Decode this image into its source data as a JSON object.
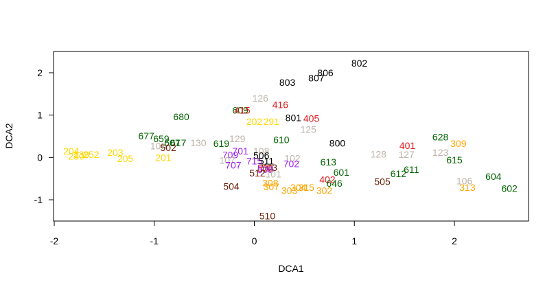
{
  "chart_data": {
    "type": "scatter",
    "title": "",
    "xlabel": "DCA1",
    "ylabel": "DCA2",
    "xlim": [
      -2,
      2.7
    ],
    "ylim": [
      -1.5,
      2.45
    ],
    "xticks": [
      -2,
      -1,
      0,
      1,
      2
    ],
    "yticks": [
      -1,
      0,
      1,
      2
    ],
    "grid": false,
    "colors": {
      "black": "#000000",
      "red": "#e31a1c",
      "gold": "#ffd700",
      "orange": "#ffa500",
      "gray": "#bdb3a8",
      "darkgreen": "#006400",
      "brown": "#6b1a00",
      "purple": "#a020f0"
    },
    "points": [
      {
        "label": "802",
        "x": 1.05,
        "y": 2.23,
        "color": "black"
      },
      {
        "label": "806",
        "x": 0.71,
        "y": 2.0,
        "color": "black"
      },
      {
        "label": "807",
        "x": 0.62,
        "y": 1.88,
        "color": "black"
      },
      {
        "label": "803",
        "x": 0.33,
        "y": 1.77,
        "color": "black"
      },
      {
        "label": "126",
        "x": 0.06,
        "y": 1.4,
        "color": "gray"
      },
      {
        "label": "416",
        "x": 0.26,
        "y": 1.25,
        "color": "red"
      },
      {
        "label": "609",
        "x": -0.14,
        "y": 1.12,
        "color": "darkgreen"
      },
      {
        "label": "415",
        "x": -0.12,
        "y": 1.12,
        "color": "red"
      },
      {
        "label": "680",
        "x": -0.73,
        "y": 0.96,
        "color": "darkgreen"
      },
      {
        "label": "801",
        "x": 0.39,
        "y": 0.94,
        "color": "black"
      },
      {
        "label": "405",
        "x": 0.57,
        "y": 0.92,
        "color": "red"
      },
      {
        "label": "202",
        "x": 0.0,
        "y": 0.85,
        "color": "gold"
      },
      {
        "label": "291",
        "x": 0.17,
        "y": 0.85,
        "color": "gold"
      },
      {
        "label": "125",
        "x": 0.54,
        "y": 0.66,
        "color": "gray"
      },
      {
        "label": "677",
        "x": -1.08,
        "y": 0.51,
        "color": "darkgreen"
      },
      {
        "label": "659",
        "x": -0.93,
        "y": 0.44,
        "color": "darkgreen"
      },
      {
        "label": "129",
        "x": -0.17,
        "y": 0.44,
        "color": "gray"
      },
      {
        "label": "610",
        "x": 0.27,
        "y": 0.42,
        "color": "darkgreen"
      },
      {
        "label": "628",
        "x": 1.86,
        "y": 0.48,
        "color": "darkgreen"
      },
      {
        "label": "309",
        "x": 2.04,
        "y": 0.33,
        "color": "orange"
      },
      {
        "label": "401",
        "x": 1.53,
        "y": 0.28,
        "color": "red"
      },
      {
        "label": "800",
        "x": 0.83,
        "y": 0.34,
        "color": "black"
      },
      {
        "label": "130",
        "x": -0.56,
        "y": 0.35,
        "color": "gray"
      },
      {
        "label": "617",
        "x": -0.76,
        "y": 0.35,
        "color": "darkgreen"
      },
      {
        "label": "607",
        "x": -0.82,
        "y": 0.35,
        "color": "darkgreen"
      },
      {
        "label": "619",
        "x": -0.33,
        "y": 0.33,
        "color": "darkgreen"
      },
      {
        "label": "105",
        "x": -0.96,
        "y": 0.27,
        "color": "gray"
      },
      {
        "label": "502",
        "x": -0.86,
        "y": 0.23,
        "color": "brown"
      },
      {
        "label": "701",
        "x": -0.14,
        "y": 0.15,
        "color": "purple"
      },
      {
        "label": "108",
        "x": 0.07,
        "y": 0.15,
        "color": "gray"
      },
      {
        "label": "204",
        "x": -1.83,
        "y": 0.15,
        "color": "gold"
      },
      {
        "label": "203",
        "x": -1.39,
        "y": 0.12,
        "color": "gold"
      },
      {
        "label": "123",
        "x": 1.86,
        "y": 0.12,
        "color": "gray"
      },
      {
        "label": "252",
        "x": -1.63,
        "y": 0.07,
        "color": "gold"
      },
      {
        "label": "239",
        "x": -1.73,
        "y": 0.07,
        "color": "gold"
      },
      {
        "label": "128",
        "x": 1.24,
        "y": 0.08,
        "color": "gray"
      },
      {
        "label": "127",
        "x": 1.52,
        "y": 0.07,
        "color": "gray"
      },
      {
        "label": "709",
        "x": -0.24,
        "y": 0.06,
        "color": "purple"
      },
      {
        "label": "506",
        "x": 0.07,
        "y": 0.05,
        "color": "black"
      },
      {
        "label": "230",
        "x": -1.78,
        "y": 0.03,
        "color": "gold"
      },
      {
        "label": "201",
        "x": -0.91,
        "y": 0.0,
        "color": "gold"
      },
      {
        "label": "205",
        "x": -1.29,
        "y": -0.03,
        "color": "gold"
      },
      {
        "label": "102",
        "x": 0.38,
        "y": -0.02,
        "color": "gray"
      },
      {
        "label": "615",
        "x": 2.0,
        "y": -0.06,
        "color": "darkgreen"
      },
      {
        "label": "715",
        "x": 0.0,
        "y": -0.08,
        "color": "purple"
      },
      {
        "label": "511",
        "x": 0.12,
        "y": -0.08,
        "color": "black"
      },
      {
        "label": "107",
        "x": -0.27,
        "y": -0.07,
        "color": "gray"
      },
      {
        "label": "613",
        "x": 0.74,
        "y": -0.11,
        "color": "darkgreen"
      },
      {
        "label": "702",
        "x": 0.37,
        "y": -0.15,
        "color": "purple"
      },
      {
        "label": "707",
        "x": -0.21,
        "y": -0.18,
        "color": "purple"
      },
      {
        "label": "503",
        "x": 0.15,
        "y": -0.24,
        "color": "brown"
      },
      {
        "label": "500",
        "x": 0.11,
        "y": -0.25,
        "color": "red"
      },
      {
        "label": "508",
        "x": 0.11,
        "y": -0.29,
        "color": "purple"
      },
      {
        "label": "611",
        "x": 1.57,
        "y": -0.29,
        "color": "darkgreen"
      },
      {
        "label": "512",
        "x": 0.03,
        "y": -0.37,
        "color": "brown"
      },
      {
        "label": "101",
        "x": 0.19,
        "y": -0.39,
        "color": "gray"
      },
      {
        "label": "601",
        "x": 0.87,
        "y": -0.35,
        "color": "darkgreen"
      },
      {
        "label": "612",
        "x": 1.44,
        "y": -0.38,
        "color": "darkgreen"
      },
      {
        "label": "604",
        "x": 2.39,
        "y": -0.45,
        "color": "darkgreen"
      },
      {
        "label": "402",
        "x": 0.73,
        "y": -0.52,
        "color": "red"
      },
      {
        "label": "505",
        "x": 1.28,
        "y": -0.57,
        "color": "brown"
      },
      {
        "label": "106",
        "x": 2.1,
        "y": -0.55,
        "color": "gray"
      },
      {
        "label": "646",
        "x": 0.8,
        "y": -0.61,
        "color": "darkgreen"
      },
      {
        "label": "308",
        "x": 0.16,
        "y": -0.6,
        "color": "orange"
      },
      {
        "label": "504",
        "x": -0.23,
        "y": -0.68,
        "color": "brown"
      },
      {
        "label": "307",
        "x": 0.17,
        "y": -0.69,
        "color": "orange"
      },
      {
        "label": "304",
        "x": 0.44,
        "y": -0.71,
        "color": "orange"
      },
      {
        "label": "315",
        "x": 0.52,
        "y": -0.71,
        "color": "orange"
      },
      {
        "label": "313",
        "x": 2.13,
        "y": -0.71,
        "color": "orange"
      },
      {
        "label": "602",
        "x": 2.55,
        "y": -0.73,
        "color": "darkgreen"
      },
      {
        "label": "303",
        "x": 0.35,
        "y": -0.78,
        "color": "orange"
      },
      {
        "label": "302",
        "x": 0.7,
        "y": -0.78,
        "color": "orange"
      },
      {
        "label": "510",
        "x": 0.13,
        "y": -1.38,
        "color": "brown"
      }
    ]
  }
}
